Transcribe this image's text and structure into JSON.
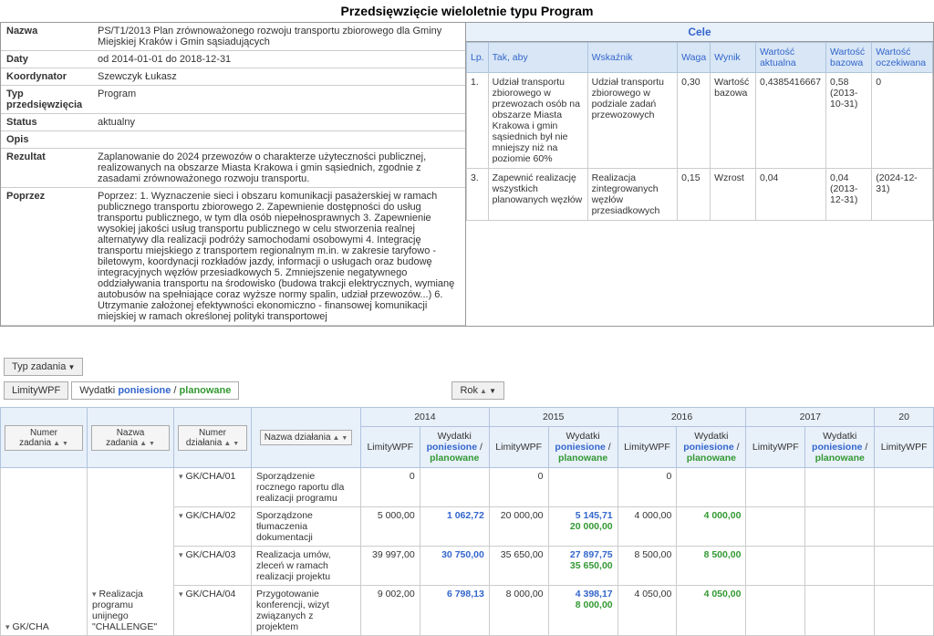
{
  "title": "Przedsięwzięcie wieloletnie typu Program",
  "info": {
    "nazwa_label": "Nazwa",
    "nazwa_value": "PS/T1/2013 Plan zrównoważonego rozwoju transportu zbiorowego dla Gminy Miejskiej Kraków i Gmin sąsiadujących",
    "daty_label": "Daty",
    "daty_value": "od 2014-01-01 do 2018-12-31",
    "koord_label": "Koordynator",
    "koord_value": "Szewczyk Łukasz",
    "typ_label": "Typ przedsięwzięcia",
    "typ_value": "Program",
    "status_label": "Status",
    "status_value": "aktualny",
    "opis_label": "Opis",
    "rezultat_label": "Rezultat",
    "rezultat_value": "Zaplanowanie do 2024 przewozów o charakterze użyteczności publicznej, realizowanych na obszarze Miasta Krakowa i gmin sąsiednich, zgodnie z zasadami zrównoważonego rozwoju transportu.",
    "poprzez_label": "Poprzez",
    "poprzez_value": "Poprzez: 1. Wyznaczenie sieci i obszaru komunikacji pasażerskiej w ramach publicznego transportu zbiorowego 2. Zapewnienie dostępności do usług transportu publicznego, w tym dla osób niepełnosprawnych 3. Zapewnienie wysokiej jakości usług transportu publicznego w celu stworzenia realnej alternatywy dla realizacji podróży samochodami osobowymi 4. Integrację transportu miejskiego z transportem regionalnym m.in. w zakresie taryfowo - biletowym, koordynacji rozkładów jazdy, informacji o usługach oraz budowę integracyjnych węzłów przesiadkowych 5. Zmniejszenie negatywnego oddziaływania transportu na środowisko (budowa trakcji elektrycznych, wymianę autobusów na spełniające coraz wyższe normy spalin, udział przewozów...) 6. Utrzymanie założonej efektywności ekonomiczno - finansowej komunikacji miejskiej w ramach określonej polityki transportowej"
  },
  "cele": {
    "header": "Cele",
    "cols": {
      "lp": "Lp.",
      "tak": "Tak, aby",
      "wsk": "Wskaźnik",
      "waga": "Waga",
      "wynik": "Wynik",
      "wa": "Wartość aktualna",
      "wb": "Wartość bazowa",
      "wo": "Wartość oczekiwana"
    },
    "rows": [
      {
        "lp": "1.",
        "tak": "Udział transportu zbiorowego w przewozach osób na obszarze Miasta Krakowa i gmin sąsiednich był nie mniejszy niż na poziomie 60%",
        "wsk": "Udział transportu zbiorowego w podziale zadań przewozowych",
        "waga": "0,30",
        "wynik": "Wartość bazowa",
        "wa": "0,4385416667",
        "wb": "0,58 (2013-10-31)",
        "wo": "0"
      },
      {
        "lp": "3.",
        "tak": "Zapewnić realizację wszystkich planowanych węzłów",
        "wsk": "Realizacja zintegrowanych węzłów przesiadkowych",
        "waga": "0,15",
        "wynik": "Wzrost",
        "wa": "0,04",
        "wb": "0,04 (2013-12-31)",
        "wo": "(2024-12-31)"
      }
    ]
  },
  "controls": {
    "typ_zadania": "Typ zadania",
    "limitywpf": "LimityWPF",
    "wydatki": "Wydatki ",
    "poniesione": "poniesione",
    "sep": " / ",
    "planowane": "planowane",
    "rok": "Rok",
    "col_numer_zad": "Numer zadania",
    "col_nazwa_zad": "Nazwa zadania",
    "col_numer_dz": "Numer działania",
    "col_nazwa_dz": "Nazwa działania"
  },
  "years": [
    "2014",
    "2015",
    "2016",
    "2017",
    "20"
  ],
  "subcols": {
    "limity": "LimityWPF",
    "wydatki1": "Wydatki",
    "pon": "poniesione",
    "sep": " /",
    "plan": "planowane"
  },
  "rows": [
    {
      "code": "GK/CHA/01",
      "desc": "Sporządzenie rocznego raportu dla realizacji programu",
      "v": [
        {
          "l": "0",
          "p": "",
          "pl": ""
        },
        {
          "l": "0",
          "p": "",
          "pl": ""
        },
        {
          "l": "0",
          "p": "",
          "pl": ""
        }
      ]
    },
    {
      "code": "GK/CHA/02",
      "desc": "Sporządzone tłumaczenia dokumentacji",
      "v": [
        {
          "l": "5 000,00",
          "p": "1 062,72",
          "pl": ""
        },
        {
          "l": "20 000,00",
          "p": "5 145,71",
          "pl": "20 000,00"
        },
        {
          "l": "4 000,00",
          "p": "",
          "pl": "4 000,00"
        }
      ]
    },
    {
      "code": "GK/CHA/03",
      "desc": "Realizacja umów, zleceń w ramach realizacji projektu",
      "v": [
        {
          "l": "39 997,00",
          "p": "30 750,00",
          "pl": ""
        },
        {
          "l": "35 650,00",
          "p": "27 897,75",
          "pl": "35 650,00"
        },
        {
          "l": "8 500,00",
          "p": "",
          "pl": "8 500,00"
        }
      ]
    },
    {
      "code": "GK/CHA/04",
      "desc": "Przygotowanie konferencji, wizyt związanych z projektem",
      "v": [
        {
          "l": "9 002,00",
          "p": "6 798,13",
          "pl": ""
        },
        {
          "l": "8 000,00",
          "p": "4 398,17",
          "pl": "8 000,00"
        },
        {
          "l": "4 050,00",
          "p": "",
          "pl": "4 050,00"
        }
      ]
    }
  ],
  "task_group": {
    "code": "GK/CHA",
    "name": "Realizacja programu unijnego \"CHALLENGE\""
  }
}
